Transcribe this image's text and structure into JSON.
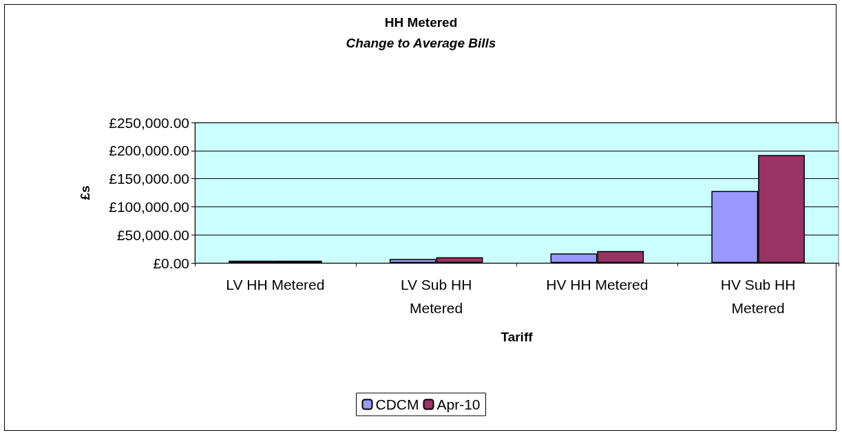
{
  "chart_data": {
    "type": "bar",
    "title": "HH Metered",
    "subtitle": "Change to Average Bills",
    "xlabel": "Tariff",
    "ylabel": "£s",
    "categories": [
      "LV HH Metered",
      "LV Sub HH\nMetered",
      "HV HH Metered",
      "HV Sub HH\nMetered"
    ],
    "series": [
      {
        "name": "CDCM",
        "color": "#9999ff",
        "values": [
          4000,
          7000,
          17000,
          128000
        ]
      },
      {
        "name": "Apr-10",
        "color": "#993366",
        "values": [
          4000,
          10000,
          21000,
          192000
        ]
      }
    ],
    "ylim": [
      0,
      250000
    ],
    "yticks": [
      {
        "value": 0,
        "label": "£0.00"
      },
      {
        "value": 50000,
        "label": "£50,000.00"
      },
      {
        "value": 100000,
        "label": "£100,000.00"
      },
      {
        "value": 150000,
        "label": "£150,000.00"
      },
      {
        "value": 200000,
        "label": "£200,000.00"
      },
      {
        "value": 250000,
        "label": "£250,000.00"
      }
    ],
    "grid": "y",
    "legend": "bottom"
  }
}
